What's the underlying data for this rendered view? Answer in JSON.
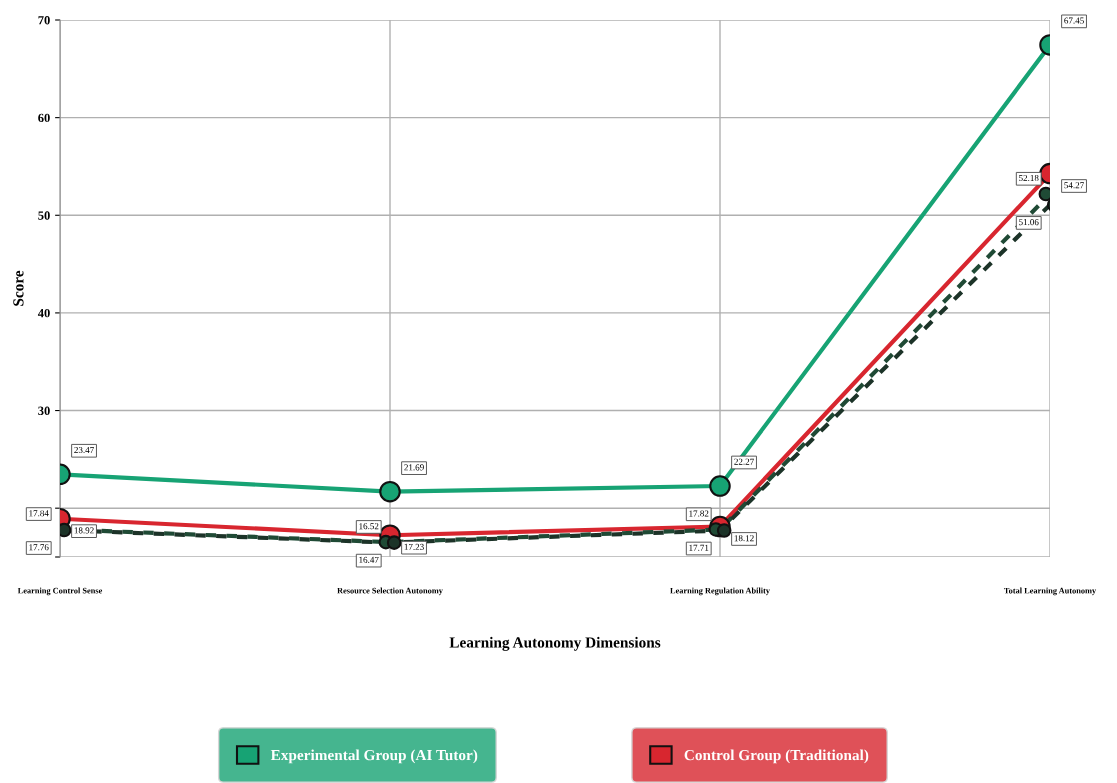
{
  "chart_data": {
    "type": "line",
    "xlabel": "Learning Autonomy Dimensions",
    "ylabel": "Score",
    "categories": [
      "Learning Control Sense",
      "Resource Selection Autonomy",
      "Learning Regulation Ability",
      "Total Learning Autonomy"
    ],
    "series": [
      {
        "name": "Experimental Group (AI Tutor)",
        "color": "#17a374",
        "values": [
          23.47,
          21.69,
          22.27,
          67.45
        ],
        "line_style": "solid"
      },
      {
        "name": "Control Group (Traditional)",
        "color": "#d8262f",
        "values": [
          18.92,
          17.23,
          18.12,
          54.27
        ],
        "line_style": "solid"
      },
      {
        "color": "#1f4a35",
        "values": [
          17.84,
          16.52,
          17.82,
          52.18
        ],
        "line_style": "dashed"
      },
      {
        "color": "#1c3328",
        "values": [
          17.76,
          16.47,
          17.71,
          51.06
        ],
        "line_style": "dashed"
      }
    ],
    "ylim": [
      15,
      70
    ],
    "yticks": [
      {
        "value": 15,
        "label": null
      },
      {
        "value": 20,
        "label": null
      },
      30,
      40,
      50,
      60,
      70
    ],
    "grid": true,
    "legend": "bottom",
    "marker": "circle",
    "data_labels": true
  }
}
